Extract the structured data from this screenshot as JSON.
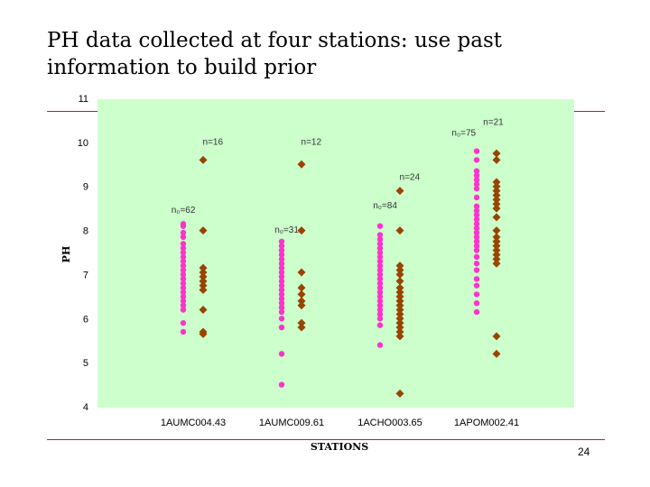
{
  "slide": {
    "title": "PH data collected at four stations: use past information to build prior",
    "page_number": "24"
  },
  "colors": {
    "plot_background": "#ccffcc",
    "past_series": "#ff33cc",
    "current_series": "#994400",
    "rule": "#b22222"
  },
  "chart_data": {
    "type": "scatter",
    "xlabel": "STATIONS",
    "ylabel": "PH",
    "ylim": [
      4,
      11
    ],
    "yticks": [
      4,
      5,
      6,
      7,
      8,
      9,
      10,
      11
    ],
    "categories": [
      "1AUMC004.43",
      "1AUMC009.61",
      "1ACHO003.65",
      "1APOM002.41"
    ],
    "grid": false,
    "series": [
      {
        "marker": "circle",
        "values": [
          [
            8.15,
            8.1,
            7.95,
            7.85,
            7.7,
            7.6,
            7.5,
            7.4,
            7.3,
            7.2,
            7.1,
            7.0,
            6.9,
            6.8,
            6.7,
            6.6,
            6.5,
            6.4,
            6.3,
            6.2,
            5.9,
            5.7
          ],
          [
            7.75,
            7.65,
            7.55,
            7.45,
            7.35,
            7.25,
            7.15,
            7.05,
            6.95,
            6.85,
            6.75,
            6.65,
            6.55,
            6.45,
            6.35,
            6.25,
            6.15,
            6.0,
            5.8,
            5.2,
            4.5
          ],
          [
            8.1,
            7.9,
            7.8,
            7.7,
            7.6,
            7.5,
            7.4,
            7.3,
            7.2,
            7.1,
            7.0,
            6.9,
            6.8,
            6.7,
            6.6,
            6.5,
            6.4,
            6.3,
            6.2,
            6.1,
            6.0,
            5.85,
            5.4
          ],
          [
            9.8,
            9.6,
            9.35,
            9.25,
            9.15,
            9.05,
            8.95,
            8.75,
            8.55,
            8.45,
            8.35,
            8.25,
            8.15,
            8.05,
            7.95,
            7.85,
            7.75,
            7.65,
            7.55,
            7.4,
            7.25,
            7.1,
            6.9,
            6.75,
            6.55,
            6.35,
            6.15
          ]
        ]
      },
      {
        "marker": "diamond",
        "values": [
          [
            9.6,
            8.0,
            7.15,
            7.05,
            6.95,
            6.85,
            6.75,
            6.65,
            6.2,
            5.7,
            5.65
          ],
          [
            9.5,
            8.0,
            7.05,
            6.7,
            6.55,
            6.4,
            6.3,
            5.9,
            5.8
          ],
          [
            8.9,
            8.0,
            7.2,
            7.1,
            7.0,
            6.85,
            6.7,
            6.6,
            6.5,
            6.4,
            6.3,
            6.2,
            6.1,
            6.0,
            5.9,
            5.8,
            5.7,
            5.6,
            4.3
          ],
          [
            9.75,
            9.6,
            9.1,
            9.0,
            8.9,
            8.8,
            8.7,
            8.6,
            8.5,
            8.3,
            8.0,
            7.85,
            7.75,
            7.65,
            7.55,
            7.45,
            7.35,
            7.25,
            5.6,
            5.2
          ]
        ]
      }
    ],
    "annotations": [
      {
        "text": "n=16",
        "x": 1.2,
        "y": 9.95
      },
      {
        "text": "n=12",
        "x": 2.2,
        "y": 9.95
      },
      {
        "text": "n=21",
        "x": 4.05,
        "y": 10.4
      },
      {
        "text": "n₀=75",
        "x": 3.75,
        "y": 10.15
      },
      {
        "text": "n=24",
        "x": 3.2,
        "y": 9.15
      },
      {
        "text": "n₀=84",
        "x": 2.95,
        "y": 8.5
      },
      {
        "text": "n₀=62",
        "x": 0.9,
        "y": 8.4
      },
      {
        "text": "n₀=31",
        "x": 1.95,
        "y": 7.95
      }
    ]
  }
}
